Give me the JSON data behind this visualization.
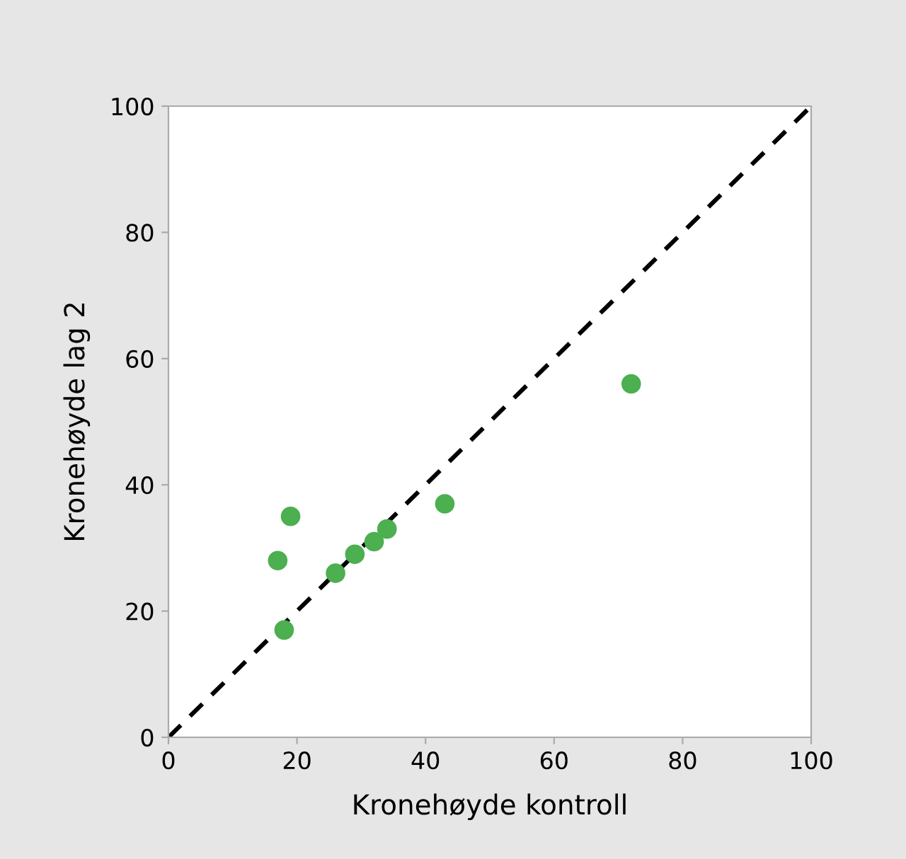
{
  "chart_data": {
    "type": "scatter",
    "xlabel": "Kronehøyde kontroll",
    "ylabel": "Kronehøyde lag 2",
    "xlim": [
      0,
      100
    ],
    "ylim": [
      0,
      100
    ],
    "xticks": [
      0,
      20,
      40,
      60,
      80,
      100
    ],
    "yticks": [
      0,
      20,
      40,
      60,
      80,
      100
    ],
    "grid": false,
    "legend": false,
    "marker": "circle",
    "series": [
      {
        "color": "#4caf50",
        "x": [
          72,
          43,
          19,
          17,
          26,
          29,
          32,
          34,
          18
        ],
        "values": [
          56,
          37,
          35,
          28,
          26,
          29,
          31,
          33,
          17
        ]
      },
      {
        "type": "line",
        "color": "#000000",
        "line_style": "dashed",
        "marker": "none",
        "x": [
          0,
          100
        ],
        "values": [
          0,
          100
        ]
      }
    ]
  }
}
